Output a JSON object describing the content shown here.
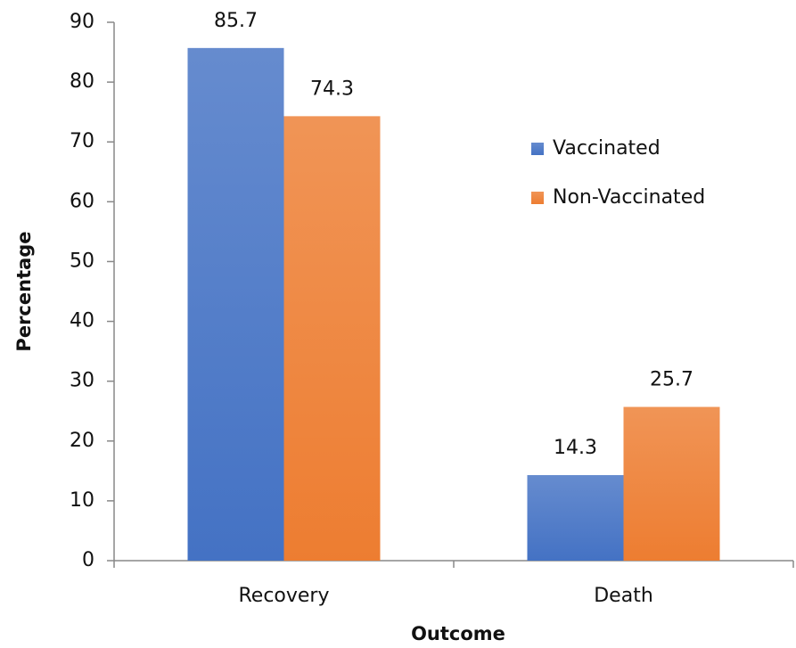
{
  "chart_data": {
    "type": "bar",
    "categories": [
      "Recovery",
      "Death"
    ],
    "series": [
      {
        "name": "Vaccinated",
        "color": "#4472c4",
        "values": [
          85.7,
          14.3
        ]
      },
      {
        "name": "Non-Vaccinated",
        "color": "#ed7d31",
        "values": [
          74.3,
          25.7
        ]
      }
    ],
    "xlabel": "Outcome",
    "ylabel": "Percentage",
    "ylim": [
      0,
      90
    ],
    "yticks": [
      0,
      10,
      20,
      30,
      40,
      50,
      60,
      70,
      80,
      90
    ],
    "grid": false,
    "legend": "right"
  }
}
